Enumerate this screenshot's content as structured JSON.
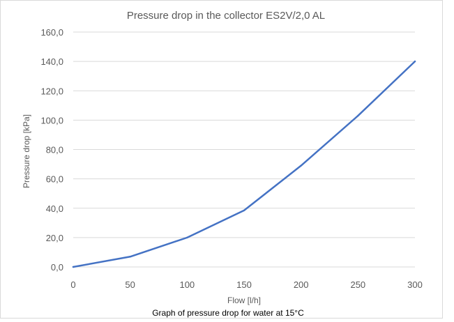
{
  "chart_data": {
    "type": "line",
    "title": "Pressure drop in the collector ES2V/2,0 AL",
    "xlabel": "Flow [l/h]",
    "ylabel": "Pressure drop [kPa]",
    "caption": "Graph of pressure drop for water at 15°C",
    "x": [
      0,
      50,
      100,
      150,
      200,
      250,
      300
    ],
    "series": [
      {
        "values": [
          0.0,
          7.0,
          20.0,
          38.5,
          69.0,
          103.0,
          140.0
        ]
      }
    ],
    "xlim": [
      0,
      300
    ],
    "ylim": [
      0,
      160
    ],
    "x_ticks": [
      0,
      50,
      100,
      150,
      200,
      250,
      300
    ],
    "x_tick_labels": [
      "0",
      "50",
      "100",
      "150",
      "200",
      "250",
      "300"
    ],
    "y_ticks": [
      0,
      20,
      40,
      60,
      80,
      100,
      120,
      140,
      160
    ],
    "y_tick_labels": [
      "0,0",
      "20,0",
      "40,0",
      "60,0",
      "80,0",
      "100,0",
      "120,0",
      "140,0",
      "160,0"
    ],
    "grid": true,
    "colors": {
      "line": "#4472c4",
      "grid": "#d9d9d9",
      "text": "#595959",
      "border": "#d9d9d9"
    }
  }
}
